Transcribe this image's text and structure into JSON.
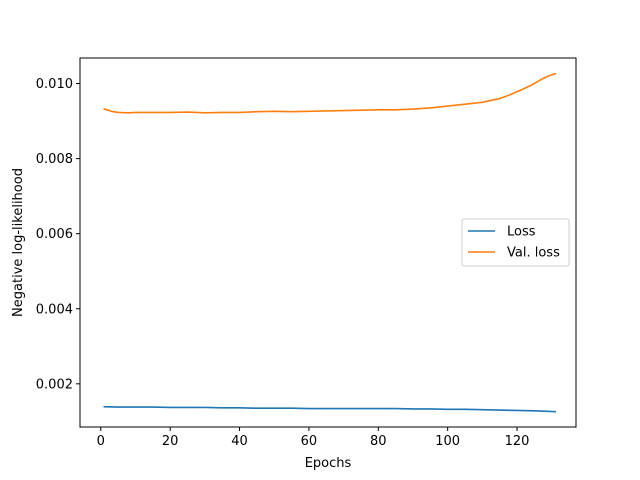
{
  "chart_data": {
    "type": "line",
    "title": "",
    "xlabel": "Epochs",
    "ylabel": "Negative log-likelihood",
    "xlim": [
      -6,
      137
    ],
    "ylim": [
      0.00085,
      0.01068
    ],
    "x_ticks": [
      0,
      20,
      40,
      60,
      80,
      100,
      120
    ],
    "x_tick_labels": [
      "0",
      "20",
      "40",
      "60",
      "80",
      "100",
      "120"
    ],
    "y_ticks": [
      0.002,
      0.004,
      0.006,
      0.008,
      0.01
    ],
    "y_tick_labels": [
      "0.002",
      "0.004",
      "0.006",
      "0.008",
      "0.010"
    ],
    "grid": false,
    "legend_position": "center-right",
    "series": [
      {
        "name": "Loss",
        "color": "#1f77b4",
        "x": [
          1,
          5,
          10,
          15,
          20,
          25,
          30,
          35,
          40,
          45,
          50,
          55,
          60,
          65,
          70,
          75,
          80,
          85,
          90,
          95,
          100,
          105,
          110,
          115,
          120,
          125,
          131
        ],
        "y": [
          0.00139,
          0.00138,
          0.00138,
          0.00138,
          0.00137,
          0.00137,
          0.00137,
          0.00136,
          0.00136,
          0.00135,
          0.00135,
          0.00135,
          0.00134,
          0.00134,
          0.00134,
          0.00134,
          0.00134,
          0.00134,
          0.00133,
          0.00133,
          0.00132,
          0.00132,
          0.00131,
          0.0013,
          0.00129,
          0.00128,
          0.00126
        ]
      },
      {
        "name": "Val. loss",
        "color": "#ff7f0e",
        "x": [
          1,
          3,
          5,
          8,
          10,
          15,
          20,
          25,
          30,
          35,
          40,
          45,
          50,
          55,
          60,
          65,
          70,
          75,
          80,
          85,
          90,
          95,
          100,
          105,
          110,
          115,
          118,
          121,
          124,
          127,
          129,
          131
        ],
        "y": [
          0.00932,
          0.00926,
          0.00923,
          0.00922,
          0.00923,
          0.00923,
          0.00923,
          0.00924,
          0.00922,
          0.00923,
          0.00923,
          0.00925,
          0.00926,
          0.00925,
          0.00926,
          0.00927,
          0.00928,
          0.00929,
          0.0093,
          0.0093,
          0.00932,
          0.00935,
          0.0094,
          0.00945,
          0.0095,
          0.0096,
          0.0097,
          0.00982,
          0.00995,
          0.01011,
          0.0102,
          0.01026
        ]
      }
    ]
  }
}
